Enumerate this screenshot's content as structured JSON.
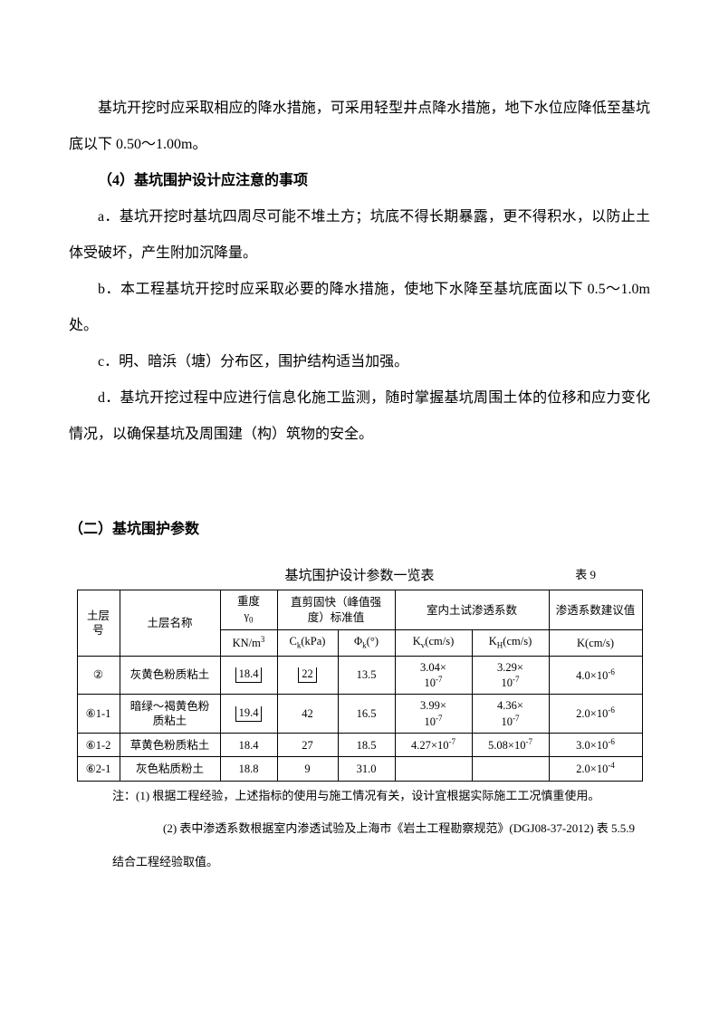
{
  "paragraphs": {
    "p1": "基坑开挖时应采取相应的降水措施，可采用轻型井点降水措施，地下水位应降低至基坑底以下 0.50～1.00m。",
    "h4": "（4）基坑围护设计应注意的事项",
    "a": "a．基坑开挖时基坑四周尽可能不堆土方；坑底不得长期暴露，更不得积水，以防止土体受破坏，产生附加沉降量。",
    "b": "b．本工程基坑开挖时应采取必要的降水措施，使地下水降至基坑底面以下 0.5～1.0m 处。",
    "c": "c．明、暗浜（塘）分布区，围护结构适当加强。",
    "d": "d．基坑开挖过程中应进行信息化施工监测，随时掌握基坑周围土体的位移和应力变化情况，以确保基坑及周围建（构）筑物的安全。",
    "section2": "（二）基坑围护参数"
  },
  "table": {
    "title": "基坑围护设计参数一览表",
    "label": "表 9",
    "headers": {
      "layer": "土层号",
      "name": "土层名称",
      "gamma_top": "重度",
      "gamma_sym": "γ",
      "gamma_sub": "0",
      "shear_top": "直剪固快（峰值强度）标准值",
      "perm_lab": "室内土试渗透系数",
      "perm_rec": "渗透系数建议值",
      "gamma_unit_pre": "KN/m",
      "gamma_unit_sup": "3",
      "c_pre": "C",
      "c_sub": "k",
      "c_unit": "(kPa)",
      "phi_pre": "Φ",
      "phi_sub": "k",
      "phi_unit": "(°)",
      "kv_pre": "K",
      "kv_sub": "v",
      "kv_unit": "(cm/s)",
      "kh_pre": "K",
      "kh_sub": "H",
      "kh_unit": "(cm/s)",
      "k_unit": "K(cm/s)"
    },
    "rows": [
      {
        "layer": "②",
        "name": "灰黄色粉质粘土",
        "gamma": "18.4",
        "gamma_tick": true,
        "c": "22",
        "c_tick": true,
        "phi": "13.5",
        "kv_a": "3.04×",
        "kv_b": "10",
        "kv_exp": "-7",
        "kh_a": "3.29×",
        "kh_b": "10",
        "kh_exp": "-7",
        "k_a": "4.0×10",
        "k_exp": "-6"
      },
      {
        "layer": "⑥1-1",
        "name": "暗绿～褐黄色粉质粘土",
        "gamma": "19.4",
        "gamma_tick": true,
        "c": "42",
        "phi": "16.5",
        "kv_a": "3.99×",
        "kv_b": "10",
        "kv_exp": "-7",
        "kh_a": "4.36×",
        "kh_b": "10",
        "kh_exp": "-7",
        "k_a": "2.0×10",
        "k_exp": "-6"
      },
      {
        "layer": "⑥1-2",
        "name": "草黄色粉质粘土",
        "gamma": "18.4",
        "c": "27",
        "phi": "18.5",
        "kv_inline": "4.27×10",
        "kv_exp": "-7",
        "kh_inline": "5.08×10",
        "kh_exp": "-7",
        "k_a": "3.0×10",
        "k_exp": "-6"
      },
      {
        "layer": "⑥2-1",
        "name": "灰色粘质粉土",
        "gamma": "18.8",
        "c": "9",
        "phi": "31.0",
        "kv_inline": "",
        "kv_exp": "",
        "kh_inline": "",
        "kh_exp": "",
        "k_a": "2.0×10",
        "k_exp": "-4"
      }
    ],
    "notes": {
      "n1": "注：(1) 根据工程经验，上述指标的使用与施工情况有关，设计宜根据实际施工工况慎重使用。",
      "n2a": "(2) 表中渗透系数根据室内渗透试验及上海市《岩土工程勘察规范》(DGJ08-37-2012) 表 5.5.9",
      "n2b": "结合工程经验取值。"
    }
  }
}
